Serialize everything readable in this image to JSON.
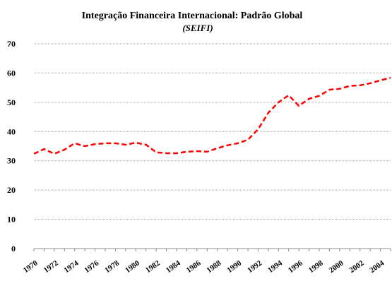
{
  "chart_data": {
    "type": "line",
    "title": "Integração Financeira Internacional: Padrão Global",
    "subtitle": "(SEIFI)",
    "x": [
      1970,
      1971,
      1972,
      1973,
      1974,
      1975,
      1976,
      1977,
      1978,
      1979,
      1980,
      1981,
      1982,
      1983,
      1984,
      1985,
      1986,
      1987,
      1988,
      1989,
      1990,
      1991,
      1992,
      1993,
      1994,
      1995,
      1996,
      1997,
      1998,
      1999,
      2000,
      2001,
      2002,
      2003,
      2004,
      2005
    ],
    "series": [
      {
        "color": "#ff0000",
        "values": [
          32.4,
          34,
          32.4,
          33.8,
          36,
          35,
          35.7,
          36,
          36,
          35.5,
          36.2,
          35.5,
          32.9,
          32.6,
          32.6,
          33.1,
          33.3,
          33.1,
          34.3,
          35.3,
          36,
          37.2,
          40.8,
          46.4,
          50,
          52.4,
          48.8,
          51.2,
          52.2,
          54.3,
          54.6,
          55.6,
          55.8,
          56.5,
          57.5,
          58.4
        ]
      }
    ],
    "xlim": [
      1970,
      2005
    ],
    "xticks": [
      1970,
      1972,
      1974,
      1976,
      1978,
      1980,
      1982,
      1984,
      1986,
      1988,
      1990,
      1992,
      1994,
      1996,
      1998,
      2000,
      2002,
      2004
    ],
    "ylim": [
      0,
      70
    ],
    "yticks": [
      0,
      10,
      20,
      30,
      40,
      50,
      60,
      70
    ],
    "grid": true
  }
}
